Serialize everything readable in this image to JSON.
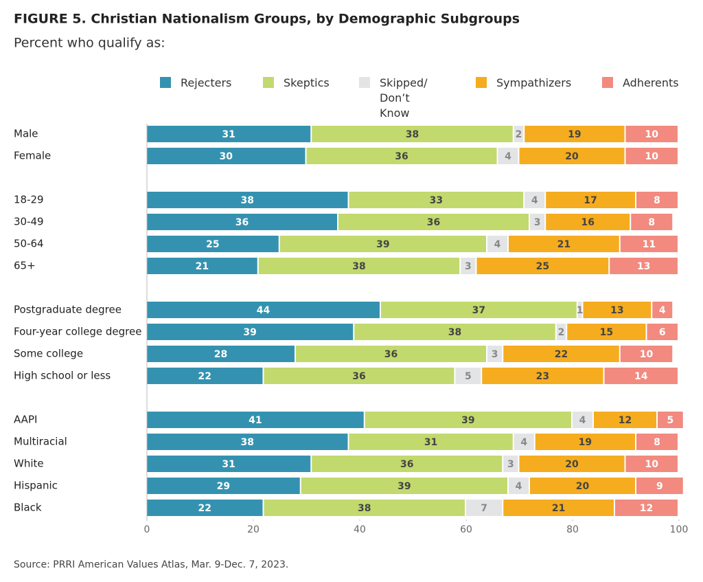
{
  "chart_data": {
    "type": "stacked-bar-horizontal",
    "title": "FIGURE 5.  Christian Nationalism Groups, by Demographic Subgroups",
    "subtitle": "Percent who qualify as:",
    "source": "Source: PRRI American Values Atlas, Mar. 9-Dec. 7, 2023.",
    "categories": [
      "Male",
      "Female",
      "18-29",
      "30-49",
      "50-64",
      "65+",
      "Postgraduate degree",
      "Four-year college degree",
      "Some college",
      "High school or less",
      "AAPI",
      "Multiracial",
      "White",
      "Hispanic",
      "Black"
    ],
    "series": [
      {
        "name": "Rejecters",
        "color": "#3492b0",
        "values": [
          31,
          30,
          38,
          36,
          25,
          21,
          44,
          39,
          28,
          22,
          41,
          38,
          31,
          29,
          22
        ]
      },
      {
        "name": "Skeptics",
        "color": "#c2d96e",
        "values": [
          38,
          36,
          33,
          36,
          39,
          38,
          37,
          38,
          36,
          36,
          39,
          31,
          36,
          39,
          38
        ]
      },
      {
        "name": "Skipped/ Don’t Know",
        "color": "#e3e4e6",
        "values": [
          2,
          4,
          4,
          3,
          4,
          3,
          1,
          2,
          3,
          5,
          4,
          4,
          3,
          4,
          7
        ]
      },
      {
        "name": "Sympathizers",
        "color": "#f5ac1f",
        "values": [
          19,
          20,
          17,
          16,
          21,
          25,
          13,
          15,
          22,
          23,
          12,
          19,
          20,
          20,
          21
        ]
      },
      {
        "name": "Adherents",
        "color": "#f28a7f",
        "values": [
          10,
          10,
          8,
          8,
          11,
          13,
          4,
          6,
          10,
          14,
          5,
          8,
          10,
          9,
          12
        ]
      }
    ],
    "xlim": [
      0,
      100
    ],
    "xticks": [
      0,
      20,
      40,
      60,
      80,
      100
    ]
  }
}
